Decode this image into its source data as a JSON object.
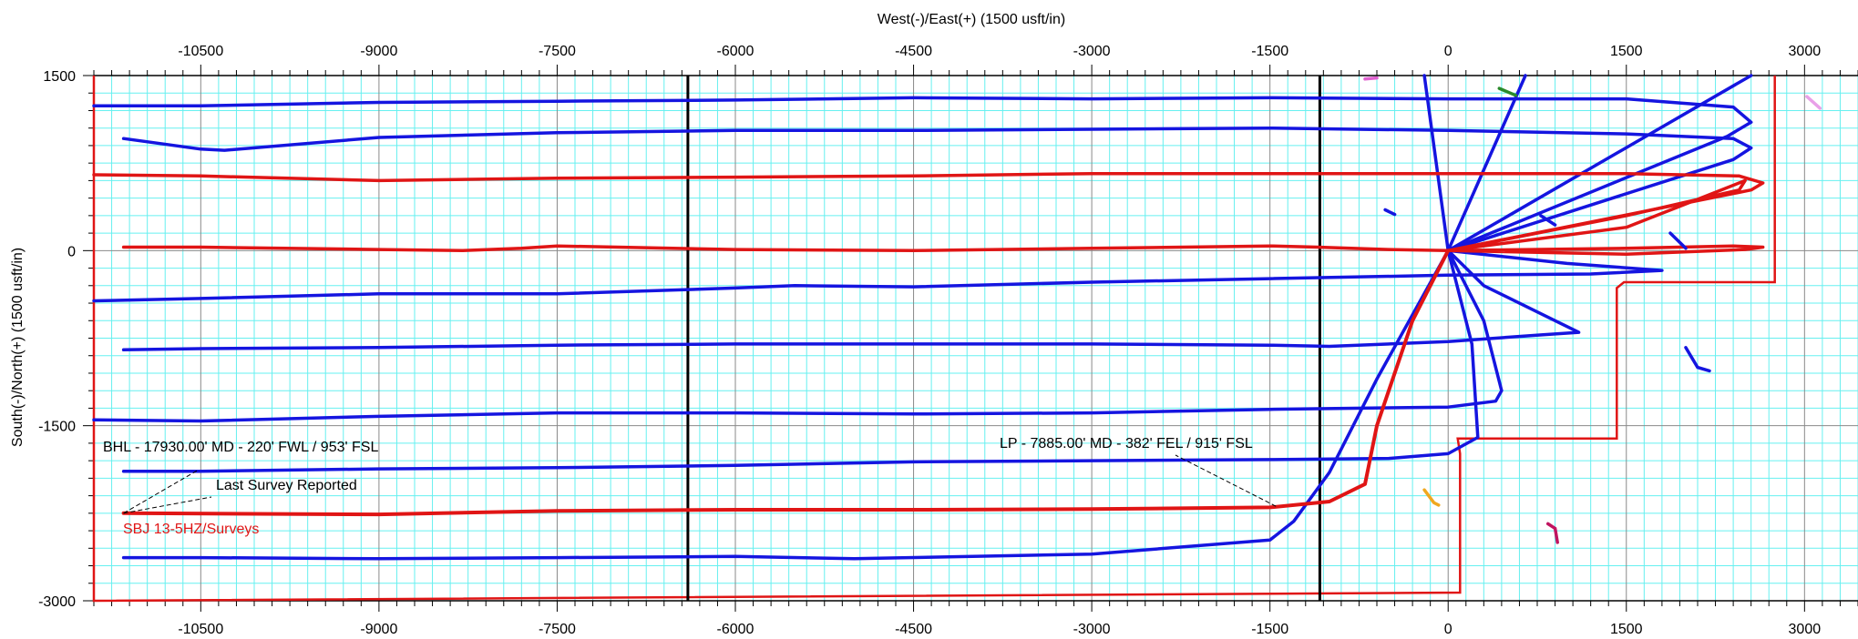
{
  "chart_data": {
    "type": "line",
    "xlabel": "West(-)/East(+) (1500 usft/in)",
    "ylabel": "South(-)/North(+) (1500 usft/in)",
    "xlim": [
      -11400,
      3450
    ],
    "ylim": [
      -3000,
      1500
    ],
    "xticks": [
      "-10500",
      "-9000",
      "-7500",
      "-6000",
      "-4500",
      "-3000",
      "-1500",
      "0",
      "1500",
      "3000"
    ],
    "xtick_values": [
      -10500,
      -9000,
      -7500,
      -6000,
      -4500,
      -3000,
      -1500,
      0,
      1500,
      3000
    ],
    "yticks": [
      "1500",
      "0",
      "-1500",
      "-3000"
    ],
    "ytick_values": [
      1500,
      0,
      -1500,
      -3000
    ],
    "grid": true,
    "grid_minor_step": 150,
    "grid_major_step": 1500,
    "colors": {
      "minor_grid": "#66f0f0",
      "major_grid": "#8a8a8a",
      "offset_wells": "#1515e0",
      "subject_well": "#e01515",
      "lease_line": "#e01515",
      "section_line": "#000000"
    },
    "annotations": [
      {
        "text": "BHL - 17930.00' MD - 220' FWL / 953' FSL",
        "point": [
          -11150,
          -2250
        ]
      },
      {
        "text": "Last Survey Reported",
        "point": [
          -11150,
          -2250
        ]
      },
      {
        "text": "LP - 7885.00' MD - 382' FEL / 915' FSL",
        "point": [
          -1450,
          -2190
        ]
      }
    ],
    "series_label": {
      "text": "SBJ 13-5HZ/Surveys",
      "color": "#e01515"
    },
    "section_lines": [
      {
        "x": [
          -6400,
          -6400
        ],
        "y": [
          1500,
          -3000
        ]
      },
      {
        "x": [
          -1080,
          -1080
        ],
        "y": [
          1500,
          -3000
        ]
      }
    ],
    "lease_line": {
      "x": [
        -11400,
        -11400,
        100,
        100,
        80,
        1420,
        1420,
        1480,
        2750,
        2750
      ],
      "y": [
        1500,
        -3000,
        -2930,
        -1740,
        -1610,
        -1610,
        -320,
        -270,
        -270,
        1500
      ]
    },
    "subject_well": [
      {
        "name": "SBJ 13-5HZ/Surveys",
        "x": [
          -11150,
          -9000,
          -7500,
          -6000,
          -4500,
          -3000,
          -1500,
          -1000,
          -700,
          -600,
          -300,
          0
        ],
        "y": [
          -2250,
          -2260,
          -2230,
          -2220,
          -2220,
          -2215,
          -2200,
          -2150,
          -2000,
          -1500,
          -600,
          0
        ]
      }
    ],
    "red_laterals": [
      {
        "x": [
          -11400,
          -10500,
          -9000,
          -7500,
          -6000,
          -4500,
          -3000,
          -1500,
          0,
          1500,
          2450,
          2650,
          2550,
          0
        ],
        "y": [
          650,
          640,
          600,
          620,
          630,
          640,
          660,
          660,
          660,
          660,
          640,
          580,
          520,
          0
        ]
      },
      {
        "x": [
          0,
          1500,
          2400,
          2650,
          2500,
          1500,
          0
        ],
        "y": [
          0,
          20,
          40,
          30,
          10,
          -30,
          0
        ]
      },
      {
        "x": [
          -11150,
          -10500,
          -9000,
          -8300,
          -7800,
          -7500,
          -6000,
          -4500,
          -3000,
          -1500,
          -1100,
          -500,
          0
        ],
        "y": [
          30,
          30,
          10,
          0,
          20,
          40,
          10,
          0,
          20,
          40,
          30,
          10,
          0
        ]
      },
      {
        "x": [
          0,
          1500,
          2450,
          2500,
          1500,
          0
        ],
        "y": [
          0,
          300,
          520,
          600,
          200,
          0
        ]
      }
    ],
    "blue_laterals": [
      {
        "x": [
          -11400,
          -10500,
          -9000,
          -7500,
          -6000,
          -4500,
          -3000,
          -1500,
          0,
          1500,
          2400,
          2550,
          2350,
          0
        ],
        "y": [
          1240,
          1240,
          1270,
          1280,
          1290,
          1310,
          1300,
          1310,
          1300,
          1300,
          1230,
          1100,
          980,
          0
        ]
      },
      {
        "x": [
          -11150,
          -10500,
          -10300,
          -9000,
          -7500,
          -6000,
          -4500,
          -3000,
          -1500,
          0,
          1500,
          2400,
          2550,
          2400,
          0
        ],
        "y": [
          960,
          870,
          860,
          970,
          1010,
          1030,
          1030,
          1040,
          1050,
          1030,
          1000,
          960,
          880,
          780,
          0
        ]
      },
      {
        "x": [
          -11400,
          -10500,
          -9000,
          -7500,
          -6000,
          -5500,
          -4500,
          -3000,
          -1500,
          0,
          1200,
          1800,
          1000,
          0
        ],
        "y": [
          -430,
          -410,
          -370,
          -370,
          -320,
          -300,
          -310,
          -270,
          -240,
          -210,
          -200,
          -170,
          -110,
          0
        ]
      },
      {
        "x": [
          -11150,
          -10500,
          -9000,
          -7500,
          -6000,
          -4500,
          -3000,
          -1500,
          -1000,
          0,
          800,
          1100,
          900,
          300,
          0
        ],
        "y": [
          -850,
          -840,
          -830,
          -810,
          -800,
          -800,
          -800,
          -810,
          -820,
          -780,
          -720,
          -700,
          -600,
          -300,
          0
        ]
      },
      {
        "x": [
          -11400,
          -10500,
          -9000,
          -7500,
          -6000,
          -4500,
          -3000,
          -1500,
          0,
          400,
          450,
          300,
          0
        ],
        "y": [
          -1450,
          -1460,
          -1420,
          -1390,
          -1390,
          -1400,
          -1390,
          -1360,
          -1340,
          -1290,
          -1200,
          -600,
          0
        ]
      },
      {
        "x": [
          -11150,
          -10500,
          -9000,
          -7500,
          -6000,
          -4500,
          -3000,
          -1500,
          -500,
          0,
          250,
          200,
          0
        ],
        "y": [
          -1890,
          -1890,
          -1870,
          -1860,
          -1840,
          -1810,
          -1800,
          -1790,
          -1780,
          -1740,
          -1600,
          -800,
          0
        ]
      },
      {
        "x": [
          -11150,
          -10500,
          -9000,
          -7500,
          -6000,
          -5000,
          -3000,
          -1500,
          -1300,
          -1000,
          -600,
          0
        ],
        "y": [
          -2630,
          -2630,
          -2640,
          -2630,
          -2620,
          -2640,
          -2600,
          -2480,
          -2320,
          -1900,
          -1100,
          0
        ]
      },
      {
        "x": [
          0,
          650
        ],
        "y": [
          0,
          1500
        ]
      },
      {
        "x": [
          0,
          -200
        ],
        "y": [
          0,
          1500
        ]
      },
      {
        "x": [
          0,
          2550
        ],
        "y": [
          0,
          1500
        ]
      }
    ],
    "short_segments": [
      {
        "color": "#e060d0",
        "x": [
          -700,
          -600
        ],
        "y": [
          1470,
          1480
        ]
      },
      {
        "color": "#2a8a2a",
        "x": [
          430,
          570
        ],
        "y": [
          1390,
          1330
        ]
      },
      {
        "color": "#e8a0e8",
        "x": [
          3020,
          3130
        ],
        "y": [
          1320,
          1220
        ]
      },
      {
        "color": "#1515e0",
        "x": [
          -530,
          -450
        ],
        "y": [
          350,
          310
        ]
      },
      {
        "color": "#1515e0",
        "x": [
          780,
          900
        ],
        "y": [
          300,
          220
        ]
      },
      {
        "color": "#1515e0",
        "x": [
          1870,
          2000
        ],
        "y": [
          150,
          20
        ]
      },
      {
        "color": "#1515e0",
        "x": [
          2000,
          2100,
          2200
        ],
        "y": [
          -830,
          -1000,
          -1030
        ]
      },
      {
        "color": "#f0a820",
        "x": [
          -200,
          -120,
          -80
        ],
        "y": [
          -2050,
          -2160,
          -2180
        ]
      },
      {
        "color": "#c01560",
        "x": [
          840,
          900,
          920
        ],
        "y": [
          -2340,
          -2380,
          -2500
        ]
      }
    ]
  }
}
